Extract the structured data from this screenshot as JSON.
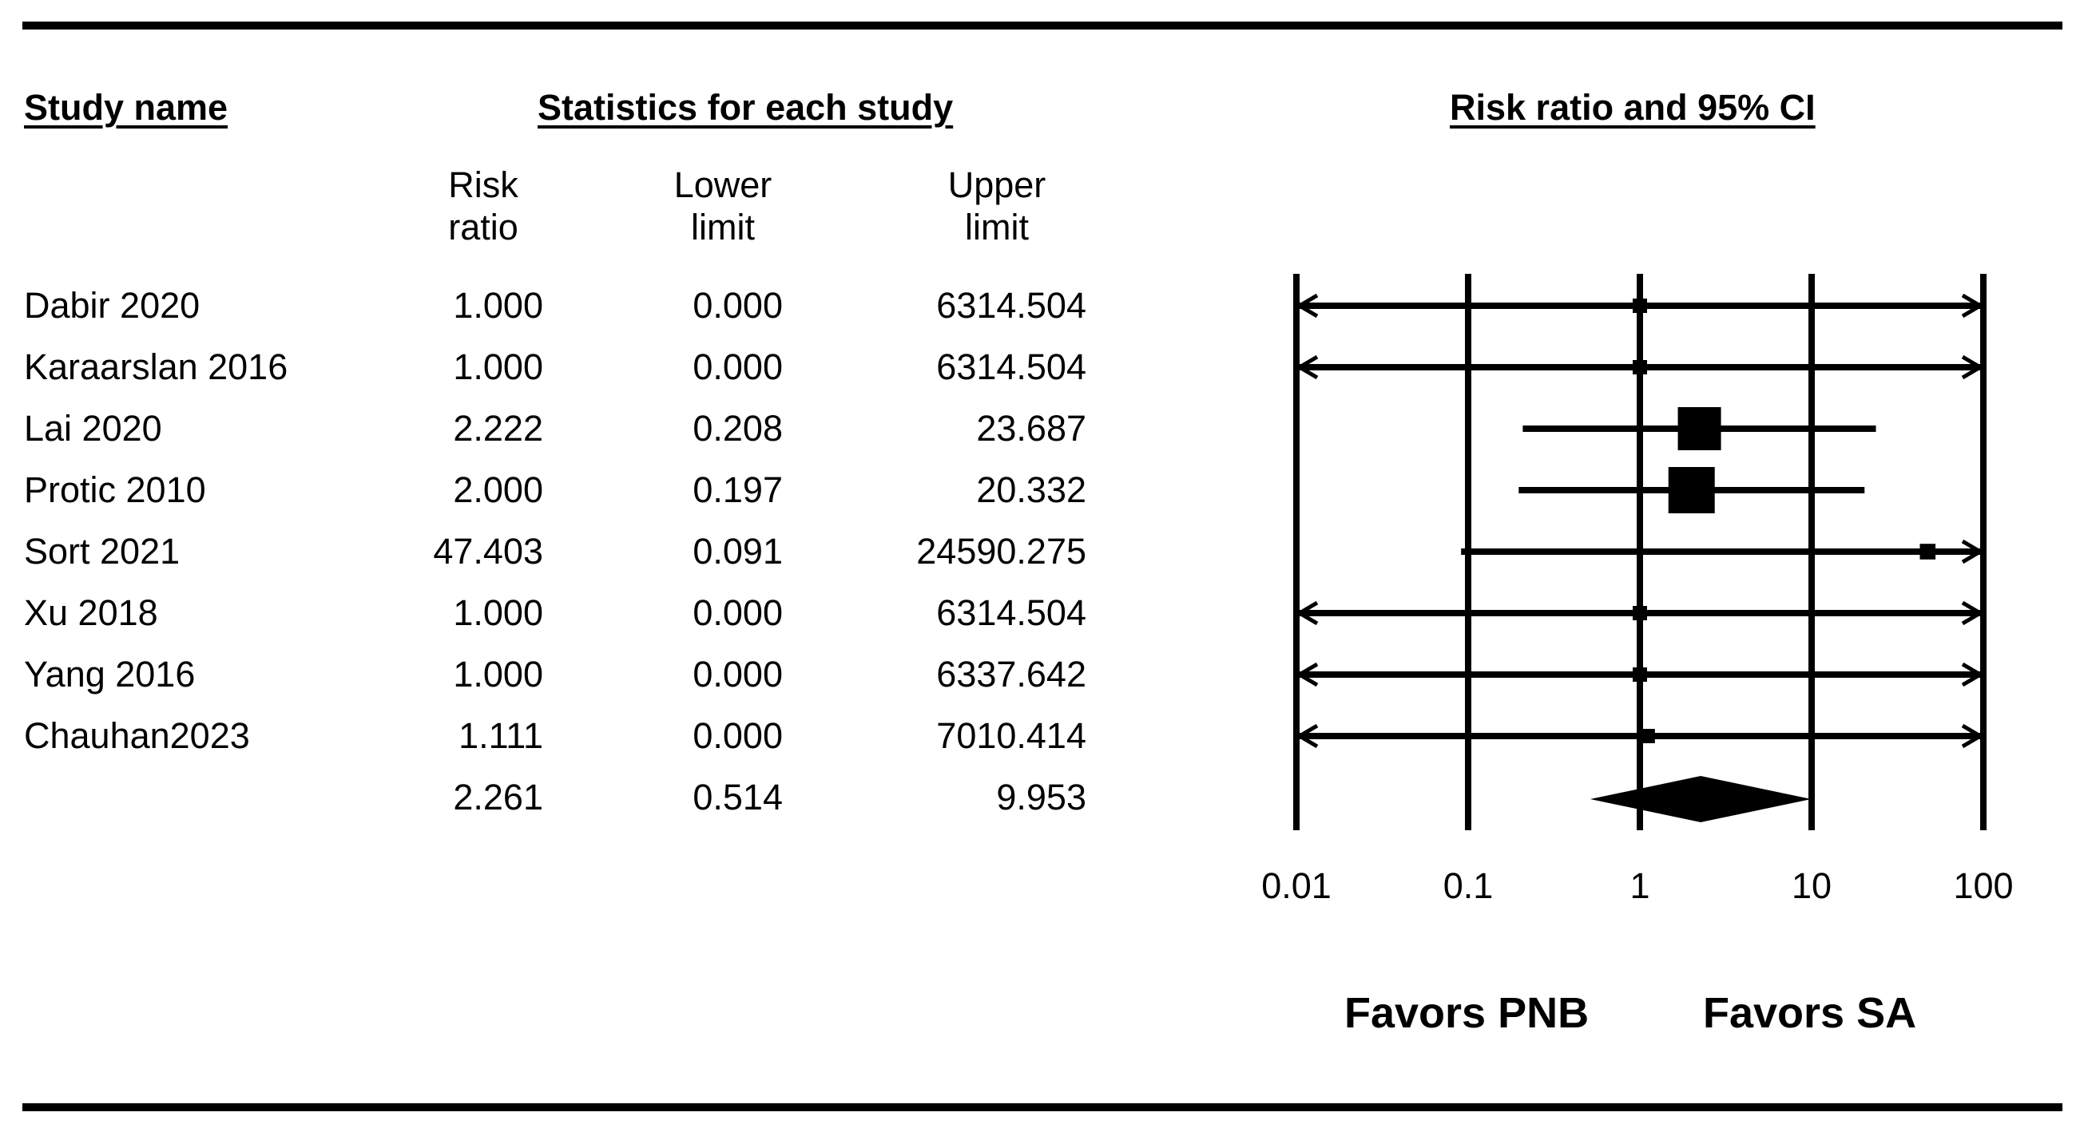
{
  "headers": {
    "study_name": "Study name",
    "statistics": "Statistics for each study",
    "plot_title": "Risk ratio and 95% CI",
    "col_rr": "Risk ratio",
    "col_lower": "Lower limit",
    "col_upper": "Upper limit"
  },
  "rows": [
    {
      "study": "Dabir 2020",
      "rr": "1.000",
      "lower": "0.000",
      "upper": "6314.504"
    },
    {
      "study": "Karaarslan 2016",
      "rr": "1.000",
      "lower": "0.000",
      "upper": "6314.504"
    },
    {
      "study": "Lai 2020",
      "rr": "2.222",
      "lower": "0.208",
      "upper": "23.687"
    },
    {
      "study": "Protic 2010",
      "rr": "2.000",
      "lower": "0.197",
      "upper": "20.332"
    },
    {
      "study": "Sort 2021",
      "rr": "47.403",
      "lower": "0.091",
      "upper": "24590.275"
    },
    {
      "study": "Xu 2018",
      "rr": "1.000",
      "lower": "0.000",
      "upper": "6314.504"
    },
    {
      "study": "Yang 2016",
      "rr": "1.000",
      "lower": "0.000",
      "upper": "6337.642"
    },
    {
      "study": "Chauhan2023",
      "rr": "1.111",
      "lower": "0.000",
      "upper": "7010.414"
    }
  ],
  "summary": {
    "study": "",
    "rr": "2.261",
    "lower": "0.514",
    "upper": "9.953"
  },
  "favors": {
    "left": "Favors PNB",
    "right": "Favors SA"
  },
  "chart_data": {
    "type": "forest",
    "title": "Risk ratio and 95% CI",
    "xscale": "log",
    "xlim": [
      0.01,
      100
    ],
    "xticks": [
      0.01,
      0.1,
      1,
      10,
      100
    ],
    "xtick_labels": [
      "0.01",
      "0.1",
      "1",
      "10",
      "100"
    ],
    "studies": [
      {
        "name": "Dabir 2020",
        "rr": 1.0,
        "lower": 0.0,
        "upper": 6314.504,
        "weight": 1
      },
      {
        "name": "Karaarslan 2016",
        "rr": 1.0,
        "lower": 0.0,
        "upper": 6314.504,
        "weight": 1
      },
      {
        "name": "Lai 2020",
        "rr": 2.222,
        "lower": 0.208,
        "upper": 23.687,
        "weight": 5.5
      },
      {
        "name": "Protic 2010",
        "rr": 2.0,
        "lower": 0.197,
        "upper": 20.332,
        "weight": 6
      },
      {
        "name": "Sort 2021",
        "rr": 47.403,
        "lower": 0.091,
        "upper": 24590.275,
        "weight": 1.2
      },
      {
        "name": "Xu 2018",
        "rr": 1.0,
        "lower": 0.0,
        "upper": 6314.504,
        "weight": 1
      },
      {
        "name": "Yang 2016",
        "rr": 1.0,
        "lower": 0.0,
        "upper": 6337.642,
        "weight": 1
      },
      {
        "name": "Chauhan2023",
        "rr": 1.111,
        "lower": 0.0,
        "upper": 7010.414,
        "weight": 1
      }
    ],
    "summary": {
      "rr": 2.261,
      "lower": 0.514,
      "upper": 9.953
    },
    "left_label": "Favors PNB",
    "right_label": "Favors SA"
  }
}
